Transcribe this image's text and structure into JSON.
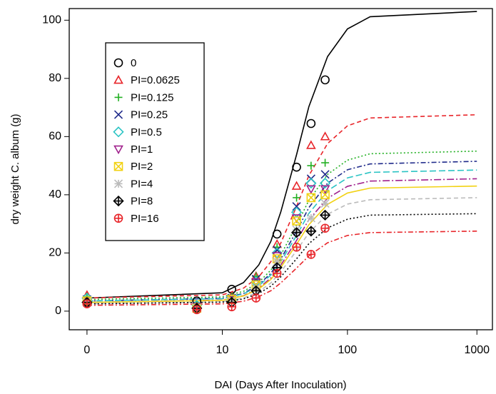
{
  "chart_data": {
    "type": "scatter-fit",
    "x_label": "DAI (Days After Inoculation)",
    "y_label": "dry weight C. album (g)",
    "x_scale": "log1p",
    "xlim": [
      -0.27,
      1317
    ],
    "xticks": [
      0,
      10,
      100,
      1000
    ],
    "ylim": [
      -6.4,
      104
    ],
    "yticks": [
      0,
      20,
      40,
      60,
      80,
      100
    ],
    "x": [
      0,
      6,
      12,
      19,
      28,
      40,
      52,
      67
    ],
    "curve_x": [
      0,
      10,
      15,
      20,
      25,
      30,
      40,
      50,
      70,
      100,
      150,
      1000
    ],
    "series": [
      {
        "name": "0",
        "color": "#000000",
        "marker": "circle",
        "dash": "none",
        "values": [
          3,
          3.5,
          7.5,
          10,
          26.5,
          49.5,
          64.5,
          79.5
        ],
        "curve": [
          4.5,
          6.3,
          9.8,
          15.9,
          24.0,
          34.1,
          53.8,
          70.3,
          87.5,
          97.0,
          101.2,
          103
        ]
      },
      {
        "name": "PI=0.0625",
        "color": "#e8252a",
        "marker": "triangle",
        "dash": "6,4",
        "values": [
          5.5,
          2,
          5,
          12,
          23,
          43,
          57,
          60
        ],
        "curve": [
          4.5,
          5.6,
          7.9,
          11.8,
          17.0,
          23.4,
          36.0,
          46.6,
          57.6,
          63.7,
          66.4,
          67.5
        ]
      },
      {
        "name": "PI=0.125",
        "color": "#22b022",
        "marker": "plus",
        "dash": "2,3",
        "values": [
          5,
          2,
          5,
          12,
          22,
          39,
          50,
          51
        ],
        "curve": [
          4,
          4.9,
          6.8,
          9.9,
          14.1,
          19.3,
          29.5,
          38.1,
          47.0,
          51.9,
          54.1,
          55
        ]
      },
      {
        "name": "PI=0.25",
        "color": "#1f2a8a",
        "marker": "cross",
        "dash": "7,3,2,3",
        "values": [
          4,
          1.5,
          4.5,
          11,
          21,
          36,
          45.5,
          47
        ],
        "curve": [
          3.5,
          4.4,
          6.1,
          9.1,
          13.0,
          17.9,
          27.5,
          35.6,
          44.0,
          48.6,
          50.6,
          51.5
        ]
      },
      {
        "name": "PI=0.5",
        "color": "#2bc4c4",
        "marker": "diamond",
        "dash": "9,4",
        "values": [
          4.5,
          2,
          4,
          10,
          20,
          34,
          44,
          44
        ],
        "curve": [
          3.5,
          4.3,
          5.9,
          8.7,
          12.4,
          17.0,
          26.0,
          33.6,
          41.4,
          45.8,
          47.7,
          48.5
        ]
      },
      {
        "name": "PI=1",
        "color": "#a0208c",
        "marker": "triangle-down",
        "dash": "10,3,2,3",
        "values": [
          3.5,
          1.5,
          4,
          10,
          19,
          32,
          42,
          42
        ],
        "curve": [
          3,
          3.8,
          5.3,
          7.9,
          11.4,
          15.8,
          24.3,
          31.4,
          38.8,
          42.9,
          44.7,
          45.5
        ]
      },
      {
        "name": "PI=2",
        "color": "#f2d214",
        "marker": "square-x",
        "dash": "none",
        "values": [
          3.5,
          1,
          4,
          9,
          18,
          31,
          39,
          40
        ],
        "curve": [
          3,
          3.7,
          5.2,
          7.6,
          10.9,
          15.0,
          23.0,
          29.7,
          36.7,
          40.6,
          42.3,
          43
        ]
      },
      {
        "name": "PI=4",
        "color": "#bbbbbb",
        "marker": "asterisk",
        "dash": "6,4",
        "values": [
          3,
          1,
          3.5,
          8,
          17,
          28,
          32,
          37
        ],
        "curve": [
          2.5,
          3.2,
          4.5,
          6.7,
          9.7,
          13.5,
          20.8,
          26.9,
          33.3,
          36.8,
          38.3,
          39
        ]
      },
      {
        "name": "PI=8",
        "color": "#000000",
        "marker": "diamond-plus",
        "dash": "2,3",
        "values": [
          3,
          1,
          3,
          7,
          15,
          27,
          27.5,
          33
        ],
        "curve": [
          2.5,
          3.1,
          4.2,
          6.1,
          8.6,
          11.8,
          18.0,
          23.2,
          28.6,
          31.6,
          33.0,
          33.5
        ]
      },
      {
        "name": "PI=16",
        "color": "#e8252a",
        "marker": "circle-plus",
        "dash": "7,3,2,3",
        "values": [
          2.5,
          0.5,
          1.5,
          4.5,
          13,
          22,
          19.5,
          28.5
        ],
        "curve": [
          2,
          2.5,
          3.4,
          5.0,
          7.0,
          9.7,
          14.8,
          19.0,
          23.5,
          26.0,
          27.0,
          27.5
        ]
      }
    ]
  }
}
